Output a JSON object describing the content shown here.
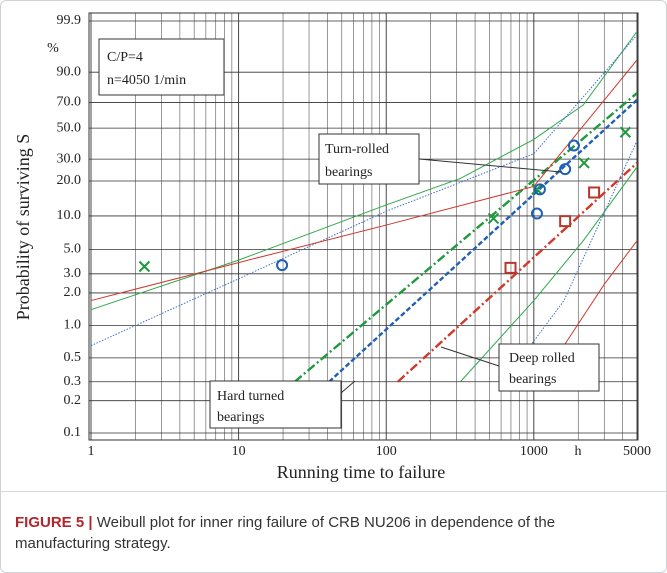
{
  "chart_data": {
    "type": "scatter",
    "ylabel": "Probability of surviving S",
    "yunit": "%",
    "xlabel": "Running time to failure",
    "xunit": "h",
    "xscale": "log",
    "yscale": "weibull",
    "xlim": [
      1,
      5000
    ],
    "ylim": [
      0.1,
      99.9
    ],
    "xticks": [
      1,
      10,
      100,
      1000,
      5000
    ],
    "yticks": [
      0.1,
      0.2,
      0.3,
      0.5,
      {
        "value": 1,
        "label": "1.0"
      },
      {
        "value": 2,
        "label": "2.0"
      },
      {
        "value": 3,
        "label": "3.0"
      },
      {
        "value": 5,
        "label": "5.0"
      },
      {
        "value": 10,
        "label": "10.0"
      },
      {
        "value": 20,
        "label": "20.0"
      },
      {
        "value": 30,
        "label": "30.0"
      },
      {
        "value": 50,
        "label": "50.0"
      },
      {
        "value": 70,
        "label": "70.0"
      },
      {
        "value": 90,
        "label": "90.0"
      },
      99.9
    ],
    "grid": true,
    "series": [
      {
        "color": "#1e9a3c",
        "marker": "x",
        "x": [
          2.3,
          533,
          1050,
          2190,
          4170
        ],
        "values": [
          3.5,
          9.5,
          17,
          28,
          47
        ]
      },
      {
        "color": "#1f5fb5",
        "marker": "circle",
        "x": [
          19.7,
          1050,
          1100,
          1630,
          1870
        ],
        "values": [
          3.6,
          10.5,
          17,
          25,
          38
        ]
      },
      {
        "color": "#b8362a",
        "marker": "square",
        "x": [
          695,
          1630,
          2560
        ],
        "values": [
          3.4,
          9,
          16
        ]
      }
    ],
    "lines": [
      {
        "color": "#1e9a3c",
        "style": "dashdot",
        "x": [
          24,
          5000
        ],
        "values": [
          0.3,
          77
        ]
      },
      {
        "color": "#1f5fb5",
        "style": "dash",
        "x": [
          41,
          5000
        ],
        "values": [
          0.3,
          72
        ]
      },
      {
        "color": "#d0392b",
        "style": "dashdot",
        "x": [
          120,
          5000
        ],
        "values": [
          0.3,
          28
        ]
      },
      {
        "color": "#2ea84a",
        "style": "thin",
        "x": [
          1,
          10,
          100,
          318,
          1000,
          2160,
          5000
        ],
        "values": [
          1.4,
          4.0,
          12.5,
          21,
          42,
          68,
          99.6
        ]
      },
      {
        "color": "#2ea84a",
        "style": "thin",
        "x": [
          318,
          1000,
          2160,
          5000
        ],
        "values": [
          0.3,
          1.7,
          6,
          26
        ]
      },
      {
        "color": "#3a6fc9",
        "style": "dot",
        "x": [
          1,
          10,
          100,
          1000,
          5000
        ],
        "values": [
          0.65,
          2.7,
          11,
          33,
          99.4
        ]
      },
      {
        "color": "#3a6fc9",
        "style": "dot",
        "x": [
          624,
          1600,
          5000
        ],
        "values": [
          0.3,
          1.7,
          41
        ]
      },
      {
        "color": "#d0392b",
        "style": "thin",
        "x": [
          1,
          10,
          100,
          1000,
          5000
        ],
        "values": [
          1.7,
          3.8,
          8.3,
          18,
          95
        ]
      },
      {
        "color": "#d0392b",
        "style": "thin",
        "x": [
          1600,
          3000,
          5000
        ],
        "values": [
          0.65,
          2.4,
          6
        ]
      }
    ],
    "annotations": [
      [
        "C/P=4",
        "n=4050 1/min"
      ],
      [
        "Turn-rolled",
        "bearings"
      ],
      [
        "Deep rolled",
        "bearings"
      ],
      [
        "Hard turned",
        "bearings"
      ]
    ]
  },
  "caption": {
    "label": "FIGURE 5 |",
    "text": "Weibull plot for inner ring failure of CRB NU206 in dependence of the manufacturing strategy."
  }
}
